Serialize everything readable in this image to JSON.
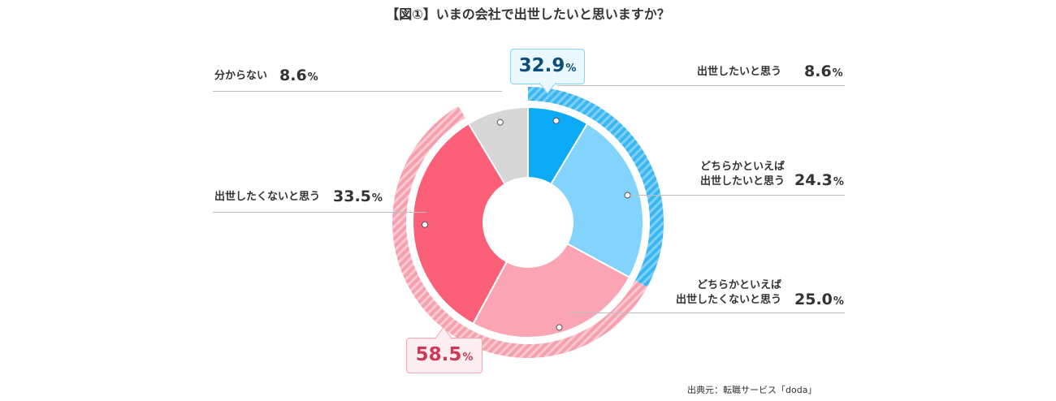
{
  "title": "【図①】いまの会社で出世したいと思いますか？",
  "source": "出典元：転職サービス「doda」",
  "chart_data": {
    "type": "pie",
    "title": "【図①】いまの会社で出世したいと思いますか？",
    "unit": "%",
    "slices": [
      {
        "label": "出世したいと思う",
        "value": 8.6,
        "color": "#0aaaf5"
      },
      {
        "label": "どちらかといえば\n出世したいと思う",
        "value": 24.3,
        "color": "#82d4fc"
      },
      {
        "label": "どちらかといえば\n出世したくないと思う",
        "value": 25.0,
        "color": "#fba4b3"
      },
      {
        "label": "出世したくないと思う",
        "value": 33.5,
        "color": "#fc6079"
      },
      {
        "label": "分からない",
        "value": 8.6,
        "color": "#d6d6d6"
      }
    ],
    "groups": [
      {
        "label": "32.9",
        "unit": "%",
        "value": 32.9,
        "color": "#3ab7f2"
      },
      {
        "label": "58.5",
        "unit": "%",
        "value": 58.5,
        "color": "#f7a2b1"
      }
    ]
  }
}
